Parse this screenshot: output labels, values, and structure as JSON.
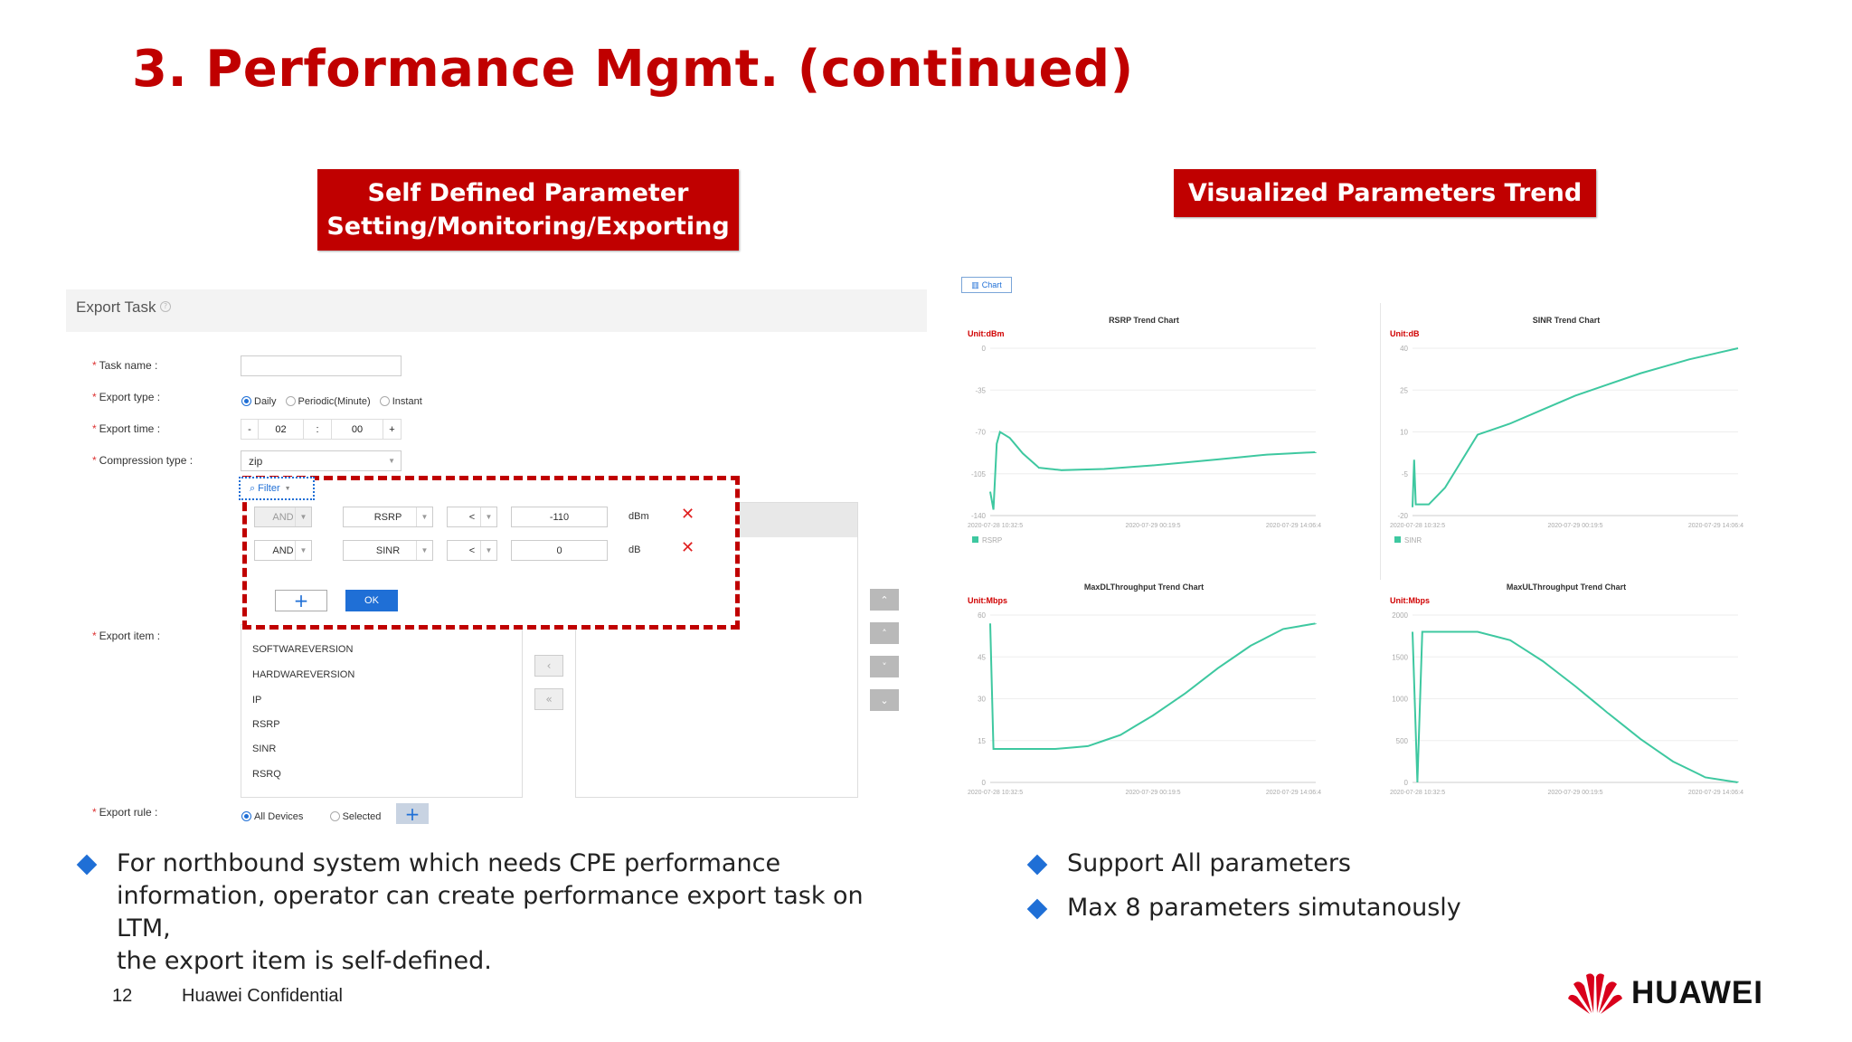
{
  "title": "3. Performance Mgmt. (continued)",
  "banners": {
    "left_line1": "Self Defined Parameter",
    "left_line2": "Setting/Monitoring/Exporting",
    "right": "Visualized Parameters Trend"
  },
  "export_task": {
    "header": "Export Task",
    "labels": {
      "task_name": "Task name :",
      "export_type": "Export type :",
      "export_time": "Export time :",
      "compression_type": "Compression type :",
      "export_item": "Export item :",
      "export_rule": "Export rule :"
    },
    "task_name_value": "",
    "export_type_options": [
      "Daily",
      "Periodic(Minute)",
      "Instant"
    ],
    "export_type_selected": "Daily",
    "time": {
      "minus": "-",
      "hour": "02",
      "sep": ":",
      "minute": "00",
      "plus": "+"
    },
    "compression_value": "zip",
    "items": [
      "SOFTWAREVERSION",
      "HARDWAREVERSION",
      "IP",
      "RSRP",
      "SINR",
      "RSRQ"
    ],
    "export_rule_options": [
      "All Devices",
      "Selected"
    ],
    "export_rule_selected": "All Devices"
  },
  "filter": {
    "tab_label": "Filter",
    "rows": [
      {
        "logic": "AND",
        "param": "RSRP",
        "op": "<",
        "value": "-110",
        "unit": "dBm"
      },
      {
        "logic": "AND",
        "param": "SINR",
        "op": "<",
        "value": "0",
        "unit": "dB"
      }
    ],
    "add_label": "+",
    "ok_label": "OK"
  },
  "chart_tab": "Chart",
  "chart_data": [
    {
      "type": "line",
      "title": "RSRP Trend Chart",
      "unit": "Unit:dBm",
      "yticks": [
        "0",
        "-35",
        "-70",
        "-105",
        "-140"
      ],
      "ylim": [
        -140,
        0
      ],
      "xticks": [
        "2020-07-28 10:32:5",
        "2020-07-29 00:19:5",
        "2020-07-29 14:06:4"
      ],
      "legend": "RSRP",
      "series": [
        {
          "name": "RSRP",
          "x": [
            0,
            0.01,
            0.02,
            0.03,
            0.06,
            0.1,
            0.15,
            0.22,
            0.35,
            0.5,
            0.7,
            0.85,
            1.0
          ],
          "y": [
            -120,
            -135,
            -80,
            -70,
            -75,
            -88,
            -100,
            -102,
            -101,
            -98,
            -93,
            -89,
            -87
          ]
        }
      ]
    },
    {
      "type": "line",
      "title": "SINR Trend Chart",
      "unit": "Unit:dB",
      "yticks": [
        "40",
        "25",
        "10",
        "-5",
        "-20"
      ],
      "ylim": [
        -20,
        40
      ],
      "xticks": [
        "2020-07-28 10:32:5",
        "2020-07-29 00:19:5",
        "2020-07-29 14:06:4"
      ],
      "legend": "SINR",
      "series": [
        {
          "name": "SINR",
          "x": [
            0,
            0.005,
            0.01,
            0.05,
            0.1,
            0.2,
            0.3,
            0.5,
            0.7,
            0.85,
            1.0
          ],
          "y": [
            -17,
            0,
            -16,
            -16,
            -10,
            9,
            13,
            23,
            31,
            36,
            40
          ]
        }
      ]
    },
    {
      "type": "line",
      "title": "MaxDLThroughput Trend Chart",
      "unit": "Unit:Mbps",
      "yticks": [
        "60",
        "45",
        "30",
        "15",
        "0"
      ],
      "ylim": [
        0,
        60
      ],
      "xticks": [
        "2020-07-28 10:32:5",
        "2020-07-29 00:19:5",
        "2020-07-29 14:06:4"
      ],
      "legend": "",
      "series": [
        {
          "name": "",
          "x": [
            0,
            0.01,
            0.03,
            0.2,
            0.3,
            0.4,
            0.5,
            0.6,
            0.7,
            0.8,
            0.9,
            1.0
          ],
          "y": [
            57,
            12,
            12,
            12,
            13,
            17,
            24,
            32,
            41,
            49,
            55,
            57
          ]
        }
      ]
    },
    {
      "type": "line",
      "title": "MaxULThroughput Trend Chart",
      "unit": "Unit:Mbps",
      "yticks": [
        "2000",
        "1500",
        "1000",
        "500",
        "0"
      ],
      "ylim": [
        0,
        2000
      ],
      "xticks": [
        "2020-07-28 10:32:5",
        "2020-07-29 00:19:5",
        "2020-07-29 14:06:4"
      ],
      "legend": "",
      "series": [
        {
          "name": "",
          "x": [
            0,
            0.015,
            0.03,
            0.2,
            0.3,
            0.4,
            0.5,
            0.6,
            0.7,
            0.8,
            0.9,
            1.0
          ],
          "y": [
            1800,
            0,
            1800,
            1800,
            1700,
            1450,
            1150,
            830,
            520,
            250,
            60,
            0
          ]
        }
      ]
    }
  ],
  "bullets_left": [
    "For northbound system which needs CPE performance",
    "information, operator can create performance export task on LTM,",
    "the export item is self-defined."
  ],
  "bullets_right": [
    "Support All parameters",
    "Max 8 parameters simutanously"
  ],
  "footer": {
    "page": "12",
    "confidential": "Huawei Confidential",
    "logo": "HUAWEI"
  },
  "colors": {
    "brand_red": "#c00000",
    "line": "#3ec8a0",
    "accent_blue": "#1f6fd6",
    "unit_red": "#d00000"
  }
}
